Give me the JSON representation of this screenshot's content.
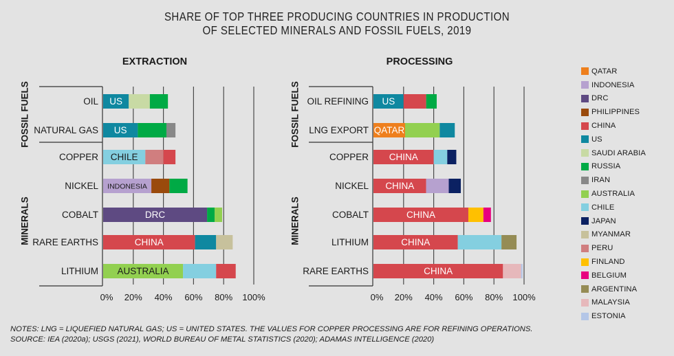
{
  "title": {
    "line1": "SHARE OF TOP THREE PRODUCING COUNTRIES IN PRODUCTION",
    "line2": "OF SELECTED MINERALS AND FOSSIL FUELS, 2019"
  },
  "notes": {
    "line1": "NOTES: LNG = LIQUEFIED NATURAL GAS; US = UNITED STATES. THE VALUES FOR COPPER PROCESSING ARE FOR REFINING OPERATIONS.",
    "line2": "SOURCE: IEA (2020a); USGS (2021), WORLD BUREAU OF METAL STATISTICS (2020); ADAMAS INTELLIGENCE (2020)"
  },
  "colors": {
    "QATAR": "#ee7f1d",
    "INDONESIA": "#b6a1cf",
    "DRC": "#5e4a82",
    "PHILIPPINES": "#9a4a0c",
    "CHINA": "#d5474d",
    "US": "#0f88a0",
    "SAUDI ARABIA": "#c8daa4",
    "RUSSIA": "#00aa45",
    "IRAN": "#888888",
    "AUSTRALIA": "#92d050",
    "CHILE": "#84cfe0",
    "JAPAN": "#0b2162",
    "MYANMAR": "#c7c19c",
    "PERU": "#d07e7f",
    "FINLAND": "#ffc000",
    "BELGIUM": "#e8007f",
    "ARGENTINA": "#958c55",
    "MALAYSIA": "#e6b8bb",
    "ESTONIA": "#b4c6e7"
  },
  "chart_data": [
    {
      "type": "bar",
      "orientation": "horizontal",
      "stacked": true,
      "title": "EXTRACTION",
      "xlabel": "",
      "ylabel": "",
      "xlim": [
        0,
        100
      ],
      "x_ticks": [
        "0%",
        "20%",
        "40%",
        "60%",
        "80%",
        "100%"
      ],
      "grid": true,
      "groups": [
        {
          "label": "FOSSIL FUELS",
          "categories": [
            "OIL",
            "NATURAL GAS"
          ]
        },
        {
          "label": "MINERALS",
          "categories": [
            "COPPER",
            "NICKEL",
            "COBALT",
            "RARE EARTHS",
            "LITHIUM"
          ]
        }
      ],
      "categories": [
        "OIL",
        "NATURAL GAS",
        "COPPER",
        "NICKEL",
        "COBALT",
        "RARE EARTHS",
        "LITHIUM"
      ],
      "rows": [
        {
          "category": "OIL",
          "segments": [
            {
              "country": "US",
              "value": 17,
              "label": "US"
            },
            {
              "country": "SAUDI ARABIA",
              "value": 14,
              "label": ""
            },
            {
              "country": "RUSSIA",
              "value": 12,
              "label": ""
            }
          ]
        },
        {
          "category": "NATURAL GAS",
          "segments": [
            {
              "country": "US",
              "value": 23,
              "label": "US"
            },
            {
              "country": "RUSSIA",
              "value": 19,
              "label": ""
            },
            {
              "country": "IRAN",
              "value": 6,
              "label": ""
            }
          ]
        },
        {
          "category": "COPPER",
          "segments": [
            {
              "country": "CHILE",
              "value": 28,
              "label": "CHILE"
            },
            {
              "country": "PERU",
              "value": 12,
              "label": ""
            },
            {
              "country": "CHINA",
              "value": 8,
              "label": ""
            }
          ]
        },
        {
          "category": "NICKEL",
          "segments": [
            {
              "country": "INDONESIA",
              "value": 32,
              "label": "INDONESIA"
            },
            {
              "country": "PHILIPPINES",
              "value": 12,
              "label": ""
            },
            {
              "country": "RUSSIA",
              "value": 12,
              "label": ""
            }
          ]
        },
        {
          "category": "COBALT",
          "segments": [
            {
              "country": "DRC",
              "value": 69,
              "label": "DRC"
            },
            {
              "country": "RUSSIA",
              "value": 5,
              "label": ""
            },
            {
              "country": "AUSTRALIA",
              "value": 5,
              "label": ""
            }
          ]
        },
        {
          "category": "RARE EARTHS",
          "segments": [
            {
              "country": "CHINA",
              "value": 61,
              "label": "CHINA"
            },
            {
              "country": "US",
              "value": 14,
              "label": ""
            },
            {
              "country": "MYANMAR",
              "value": 11,
              "label": ""
            }
          ]
        },
        {
          "category": "LITHIUM",
          "segments": [
            {
              "country": "AUSTRALIA",
              "value": 53,
              "label": "AUSTRALIA"
            },
            {
              "country": "CHILE",
              "value": 22,
              "label": ""
            },
            {
              "country": "CHINA",
              "value": 13,
              "label": ""
            }
          ]
        }
      ]
    },
    {
      "type": "bar",
      "orientation": "horizontal",
      "stacked": true,
      "title": "PROCESSING",
      "xlabel": "",
      "ylabel": "",
      "xlim": [
        0,
        100
      ],
      "x_ticks": [
        "0%",
        "20%",
        "40%",
        "60%",
        "80%",
        "100%"
      ],
      "grid": true,
      "groups": [
        {
          "label": "FOSSIL FUELS",
          "categories": [
            "OIL REFINING",
            "LNG EXPORT"
          ]
        },
        {
          "label": "MINERALS",
          "categories": [
            "COPPER",
            "NICKEL",
            "COBALT",
            "LITHIUM",
            "RARE EARTHS"
          ]
        }
      ],
      "categories": [
        "OIL REFINING",
        "LNG EXPORT",
        "COPPER",
        "NICKEL",
        "COBALT",
        "LITHIUM",
        "RARE EARTHS"
      ],
      "rows": [
        {
          "category": "OIL REFINING",
          "segments": [
            {
              "country": "US",
              "value": 20,
              "label": "US"
            },
            {
              "country": "CHINA",
              "value": 15,
              "label": ""
            },
            {
              "country": "RUSSIA",
              "value": 7,
              "label": ""
            }
          ]
        },
        {
          "category": "LNG EXPORT",
          "segments": [
            {
              "country": "QATAR",
              "value": 21,
              "label": "QATAR"
            },
            {
              "country": "AUSTRALIA",
              "value": 23,
              "label": ""
            },
            {
              "country": "US",
              "value": 10,
              "label": ""
            }
          ]
        },
        {
          "category": "COPPER",
          "segments": [
            {
              "country": "CHINA",
              "value": 40,
              "label": "CHINA"
            },
            {
              "country": "CHILE",
              "value": 9,
              "label": ""
            },
            {
              "country": "JAPAN",
              "value": 6,
              "label": ""
            }
          ]
        },
        {
          "category": "NICKEL",
          "segments": [
            {
              "country": "CHINA",
              "value": 35,
              "label": "CHINA"
            },
            {
              "country": "INDONESIA",
              "value": 15,
              "label": ""
            },
            {
              "country": "JAPAN",
              "value": 8,
              "label": ""
            }
          ]
        },
        {
          "category": "COBALT",
          "segments": [
            {
              "country": "CHINA",
              "value": 63,
              "label": "CHINA"
            },
            {
              "country": "FINLAND",
              "value": 10,
              "label": ""
            },
            {
              "country": "BELGIUM",
              "value": 5,
              "label": ""
            }
          ]
        },
        {
          "category": "LITHIUM",
          "segments": [
            {
              "country": "CHINA",
              "value": 56,
              "label": "CHINA"
            },
            {
              "country": "CHILE",
              "value": 29,
              "label": ""
            },
            {
              "country": "ARGENTINA",
              "value": 10,
              "label": ""
            }
          ]
        },
        {
          "category": "RARE EARTHS",
          "segments": [
            {
              "country": "CHINA",
              "value": 86,
              "label": "CHINA"
            },
            {
              "country": "MALAYSIA",
              "value": 12,
              "label": ""
            },
            {
              "country": "ESTONIA",
              "value": 1,
              "label": ""
            }
          ]
        }
      ]
    }
  ],
  "legend": {
    "placement": "right",
    "items": [
      "QATAR",
      "INDONESIA",
      "DRC",
      "PHILIPPINES",
      "CHINA",
      "US",
      "SAUDI ARABIA",
      "RUSSIA",
      "IRAN",
      "AUSTRALIA",
      "CHILE",
      "JAPAN",
      "MYANMAR",
      "PERU",
      "FINLAND",
      "BELGIUM",
      "ARGENTINA",
      "MALAYSIA",
      "ESTONIA"
    ]
  }
}
